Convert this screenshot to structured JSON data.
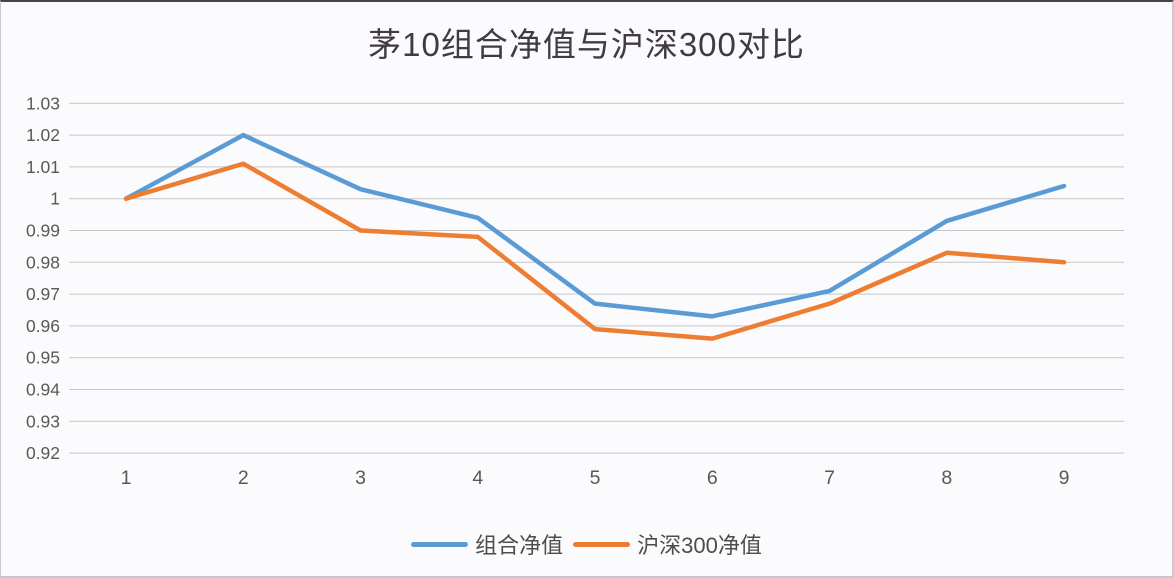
{
  "title": "茅10组合净值与沪深300对比",
  "chart_data": {
    "type": "line",
    "title": "茅10组合净值与沪深300对比",
    "xlabel": "",
    "ylabel": "",
    "x_ticks": [
      "1",
      "2",
      "3",
      "4",
      "5",
      "6",
      "7",
      "8",
      "9"
    ],
    "y_ticks": [
      "1.03",
      "1.02",
      "1.01",
      "1",
      "0.99",
      "0.98",
      "0.97",
      "0.96",
      "0.95",
      "0.94",
      "0.93",
      "0.92"
    ],
    "ylim": [
      0.92,
      1.03
    ],
    "grid": "horizontal-only",
    "markers": "none",
    "legend_position": "bottom",
    "series": [
      {
        "key": "portfolio-nav",
        "name": "组合净值",
        "color": "#5B9BD5",
        "values": [
          1.0,
          1.02,
          1.003,
          0.994,
          0.967,
          0.963,
          0.971,
          0.993,
          1.004
        ]
      },
      {
        "key": "csi300-nav",
        "name": "沪深300净值",
        "color": "#ED7D31",
        "values": [
          1.0,
          1.011,
          0.99,
          0.988,
          0.959,
          0.956,
          0.967,
          0.983,
          0.98
        ]
      }
    ]
  },
  "style": {
    "background": "#fbfafc",
    "border_top_color": "#47424b",
    "border_side_color": "#c9c8ce",
    "gridline_color": "#c6c6c6",
    "tick_label_color": "#595959",
    "title_color": "#403a44",
    "legend_label_color": "#4d4d4d"
  }
}
